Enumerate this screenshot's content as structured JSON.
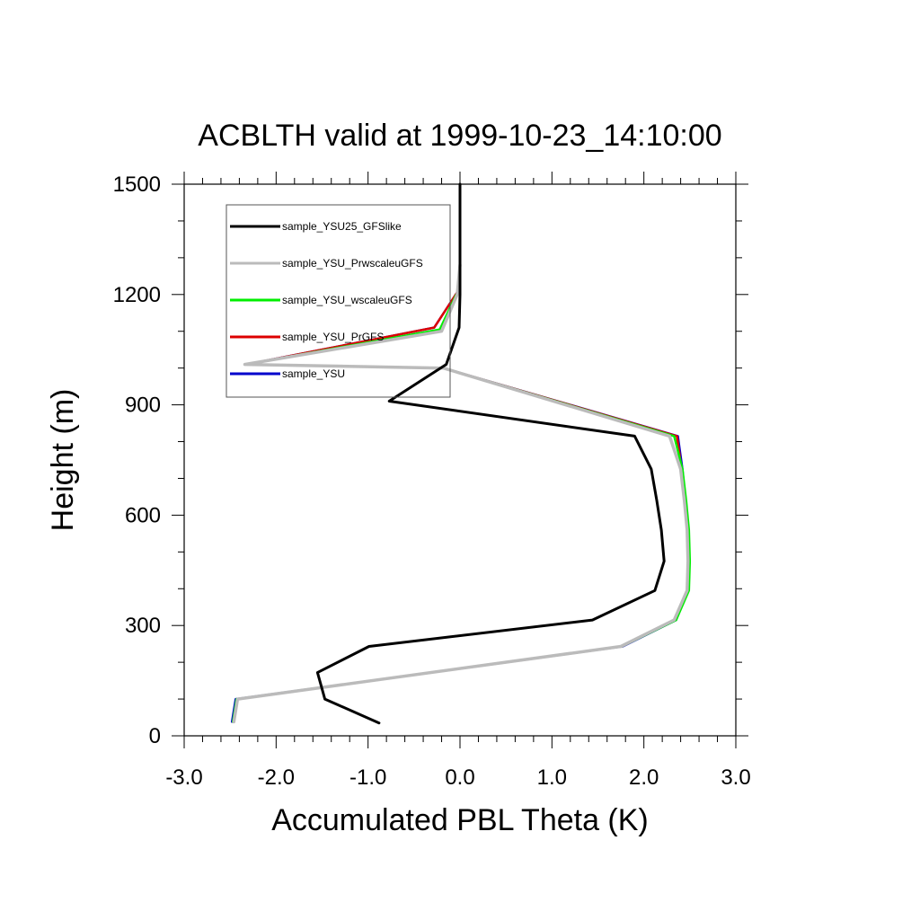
{
  "chart_data": {
    "type": "line",
    "title": "ACBLTH valid at 1999-10-23_14:10:00",
    "xlabel": "Accumulated PBL Theta (K)",
    "ylabel": "Height (m)",
    "xlim": [
      -3.0,
      3.0
    ],
    "ylim": [
      0,
      1500
    ],
    "x_tick_labels": [
      "-3.0",
      "-2.0",
      "-1.0",
      "0.0",
      "1.0",
      "2.0",
      "3.0"
    ],
    "y_tick_labels": [
      "0",
      "300",
      "600",
      "900",
      "1200",
      "1500"
    ],
    "legend_position": "top-left",
    "grid": false,
    "series": [
      {
        "name": "sample_YSU",
        "color": "#0000cc",
        "points": [
          [
            -2.48,
            38
          ],
          [
            -2.44,
            100
          ],
          [
            1.77,
            243
          ],
          [
            2.35,
            315
          ],
          [
            2.48,
            395
          ],
          [
            2.49,
            475
          ],
          [
            2.48,
            560
          ],
          [
            2.45,
            640
          ],
          [
            2.42,
            725
          ],
          [
            2.37,
            815
          ],
          [
            -0.18,
            1000
          ],
          [
            -2.32,
            1010
          ],
          [
            -0.28,
            1110
          ],
          [
            -0.02,
            1210
          ],
          [
            0.0,
            1270
          ]
        ]
      },
      {
        "name": "sample_YSU_PrGFS",
        "color": "#dd0000",
        "points": [
          [
            -2.46,
            38
          ],
          [
            -2.42,
            100
          ],
          [
            1.76,
            243
          ],
          [
            2.34,
            315
          ],
          [
            2.47,
            395
          ],
          [
            2.48,
            475
          ],
          [
            2.47,
            560
          ],
          [
            2.44,
            640
          ],
          [
            2.41,
            725
          ],
          [
            2.36,
            815
          ],
          [
            -0.18,
            1000
          ],
          [
            -2.32,
            1010
          ],
          [
            -0.28,
            1110
          ],
          [
            -0.02,
            1210
          ],
          [
            0.0,
            1280
          ]
        ]
      },
      {
        "name": "sample_YSU_wscaleuGFS",
        "color": "#00ee00",
        "points": [
          [
            -2.47,
            38
          ],
          [
            -2.43,
            100
          ],
          [
            1.76,
            243
          ],
          [
            2.35,
            315
          ],
          [
            2.49,
            395
          ],
          [
            2.5,
            475
          ],
          [
            2.49,
            560
          ],
          [
            2.46,
            640
          ],
          [
            2.42,
            725
          ],
          [
            2.33,
            815
          ],
          [
            -0.18,
            1000
          ],
          [
            -2.33,
            1010
          ],
          [
            -0.22,
            1105
          ],
          [
            -0.04,
            1200
          ]
        ]
      },
      {
        "name": "sample_YSU_PrwscaleuGFS",
        "color": "#bbbbbb",
        "points": [
          [
            -2.46,
            38
          ],
          [
            -2.42,
            100
          ],
          [
            1.75,
            243
          ],
          [
            2.33,
            315
          ],
          [
            2.47,
            395
          ],
          [
            2.48,
            475
          ],
          [
            2.47,
            560
          ],
          [
            2.44,
            640
          ],
          [
            2.4,
            725
          ],
          [
            2.28,
            815
          ],
          [
            -0.18,
            1000
          ],
          [
            -2.34,
            1010
          ],
          [
            -0.2,
            1100
          ],
          [
            -0.03,
            1200
          ],
          [
            0.0,
            1280
          ]
        ]
      },
      {
        "name": "sample_YSU25_GFSlike",
        "color": "#000000",
        "points": [
          [
            -0.88,
            35
          ],
          [
            -1.47,
            100
          ],
          [
            -1.55,
            172
          ],
          [
            -0.99,
            243
          ],
          [
            1.44,
            315
          ],
          [
            2.12,
            395
          ],
          [
            2.22,
            475
          ],
          [
            2.19,
            560
          ],
          [
            2.14,
            640
          ],
          [
            2.08,
            725
          ],
          [
            1.9,
            815
          ],
          [
            -0.77,
            910
          ],
          [
            -0.15,
            1010
          ],
          [
            -0.01,
            1110
          ],
          [
            0.0,
            1200
          ],
          [
            0.0,
            1500
          ]
        ]
      }
    ],
    "legend_order": [
      "sample_YSU25_GFSlike",
      "sample_YSU_PrwscaleuGFS",
      "sample_YSU_wscaleuGFS",
      "sample_YSU_PrGFS",
      "sample_YSU"
    ]
  }
}
